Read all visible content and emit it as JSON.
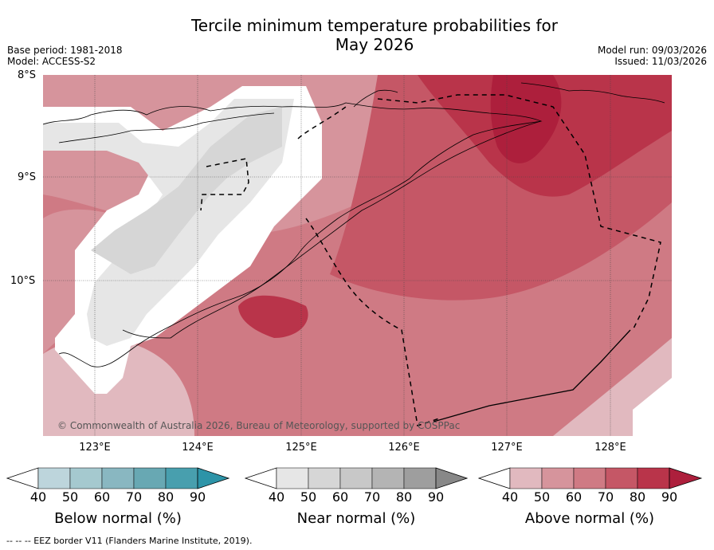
{
  "title_line1": "Tercile minimum temperature probabilities for",
  "title_line2": "May 2026",
  "base_period": "Base period: 1981-2018",
  "model": "Model: ACCESS-S2",
  "model_run": "Model run: 09/03/2026",
  "issued": "Issued: 11/03/2026",
  "lat_labels": [
    "8°S",
    "9°S",
    "10°S"
  ],
  "lon_labels": [
    "123°E",
    "124°E",
    "125°E",
    "126°E",
    "127°E",
    "128°E"
  ],
  "copyright": "© Commonwealth of Australia 2026, Bureau of Meteorology, supported by COSPPac",
  "colorbars": [
    {
      "label": "Below normal (%)",
      "ticks": [
        "40",
        "50",
        "60",
        "70",
        "80",
        "90"
      ],
      "colors": [
        "#bdd5dc",
        "#a5c9cf",
        "#89b7c1",
        "#68a8b3",
        "#489fae",
        "#2d94a8"
      ]
    },
    {
      "label": "Near normal (%)",
      "ticks": [
        "40",
        "50",
        "60",
        "70",
        "80",
        "90"
      ],
      "colors": [
        "#e6e6e6",
        "#d6d6d6",
        "#c8c8c8",
        "#b4b4b4",
        "#9e9e9e",
        "#888888"
      ]
    },
    {
      "label": "Above normal (%)",
      "ticks": [
        "40",
        "50",
        "60",
        "70",
        "80",
        "90"
      ],
      "colors": [
        "#e1b9bf",
        "#d6949c",
        "#cf7a84",
        "#c55766",
        "#b9344a",
        "#ad1f3c"
      ]
    }
  ],
  "footer": "--  --  -- EEZ border V11 (Flanders Marine Institute, 2019)."
}
